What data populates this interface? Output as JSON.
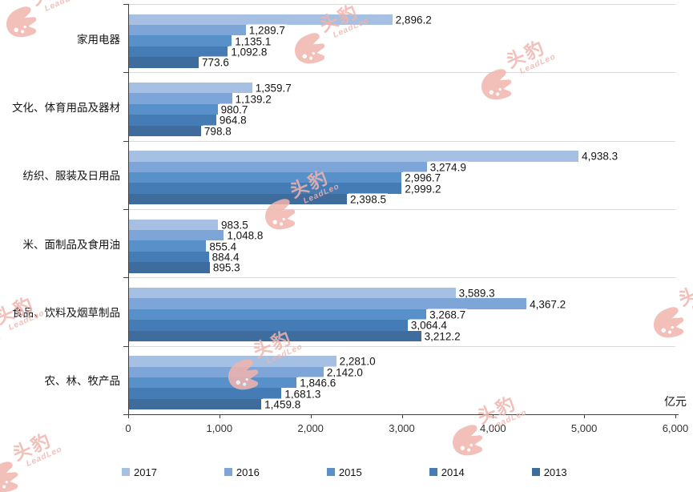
{
  "chart_data": {
    "type": "bar",
    "orientation": "horizontal",
    "title": "",
    "unit_label": "亿元",
    "categories": [
      "家用电器",
      "文化、体育用品及器材",
      "纺织、服装及日用品",
      "米、面制品及食用油",
      "食品、饮料及烟草制品",
      "农、林、牧产品"
    ],
    "series": [
      {
        "name": "2017",
        "color": "#a5c0e2",
        "values": [
          2896.2,
          1359.7,
          4938.3,
          983.5,
          3589.3,
          2281.0
        ]
      },
      {
        "name": "2016",
        "color": "#7ea5d8",
        "values": [
          1289.7,
          1139.2,
          3274.9,
          1048.8,
          4367.2,
          2142.0
        ]
      },
      {
        "name": "2015",
        "color": "#5890c9",
        "values": [
          1135.1,
          980.7,
          2996.7,
          855.4,
          3268.7,
          1846.6
        ]
      },
      {
        "name": "2014",
        "color": "#457cb5",
        "values": [
          1092.8,
          964.8,
          2999.2,
          884.4,
          3064.4,
          1681.3
        ]
      },
      {
        "name": "2013",
        "color": "#3e6d9d",
        "values": [
          773.6,
          798.8,
          2398.5,
          895.3,
          3212.2,
          1459.8
        ]
      }
    ],
    "x_ticks": [
      "0",
      "1,000",
      "2,000",
      "3,000",
      "4,000",
      "5,000",
      "6,000"
    ],
    "xlim": [
      0,
      6000
    ],
    "grid": "horizontal-category-separators",
    "legend_position": "bottom"
  },
  "watermark": {
    "brand": "头豹",
    "sub": "LeadLeo"
  }
}
